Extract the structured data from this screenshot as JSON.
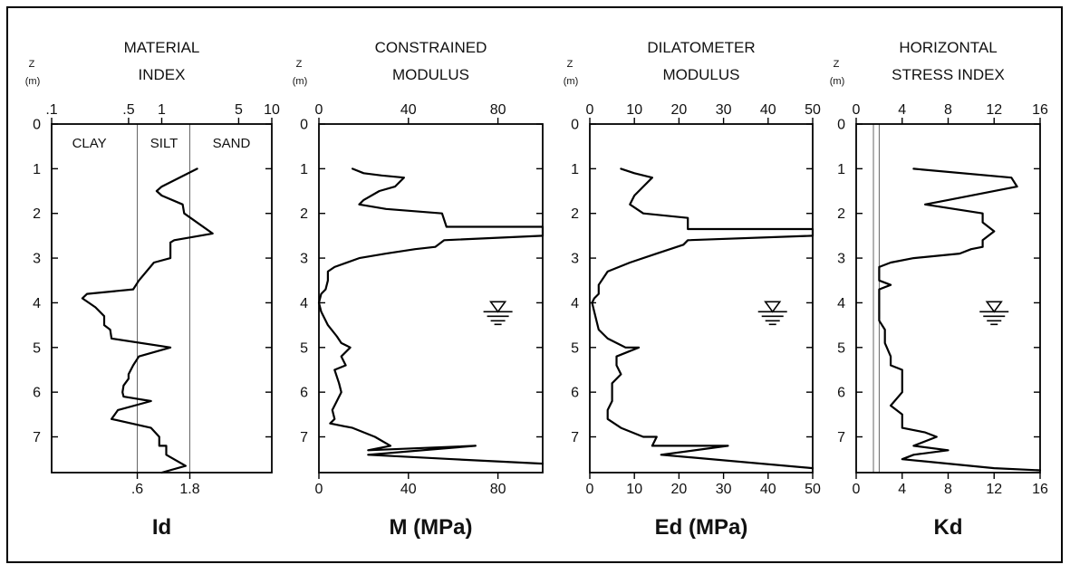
{
  "chart_data": [
    {
      "type": "line",
      "panel": "id",
      "title_lines": [
        "MATERIAL",
        "INDEX"
      ],
      "xlabel": "Id",
      "ylabel_lines": [
        "Z",
        "(m)"
      ],
      "x_scale": "log",
      "xlim": [
        0.1,
        10
      ],
      "ylim": [
        0,
        7.8
      ],
      "top_ticks": [
        {
          "value": 0.1,
          "label": ".1"
        },
        {
          "value": 0.5,
          "label": ".5"
        },
        {
          "value": 1,
          "label": "1"
        },
        {
          "value": 5,
          "label": "5"
        },
        {
          "value": 10,
          "label": "10"
        }
      ],
      "bottom_ticks": [
        {
          "value": 0.6,
          "label": ".6"
        },
        {
          "value": 1.8,
          "label": "1.8"
        }
      ],
      "y_ticks": [
        "0",
        "1",
        "2",
        "3",
        "4",
        "5",
        "6",
        "7"
      ],
      "reference_lines": [
        0.6,
        1.8
      ],
      "regions": [
        {
          "label": "CLAY",
          "x": 0.22
        },
        {
          "label": "SILT",
          "x": 1.05
        },
        {
          "label": "SAND",
          "x": 4.3
        }
      ],
      "series": [
        {
          "x": [
            2.1,
            1.0,
            0.9,
            1.0,
            1.55,
            1.6,
            2.9,
            1.3,
            1.2,
            1.2,
            0.85,
            0.62,
            0.55,
            0.21,
            0.19,
            0.25,
            0.3,
            0.3,
            0.34,
            0.35,
            1.2,
            0.62,
            0.55,
            0.5,
            0.5,
            0.45,
            0.44,
            0.45,
            0.8,
            0.4,
            0.35,
            0.8,
            0.95,
            0.95,
            1.1,
            1.1,
            1.65,
            1.0
          ],
          "y": [
            1.0,
            1.4,
            1.5,
            1.6,
            1.8,
            2.0,
            2.45,
            2.6,
            2.65,
            3.0,
            3.1,
            3.5,
            3.7,
            3.8,
            3.9,
            4.1,
            4.3,
            4.5,
            4.6,
            4.8,
            5.0,
            5.2,
            5.4,
            5.6,
            5.7,
            5.85,
            6.0,
            6.1,
            6.2,
            6.4,
            6.6,
            6.8,
            7.0,
            7.2,
            7.2,
            7.4,
            7.65,
            7.8
          ]
        }
      ]
    },
    {
      "type": "line",
      "panel": "m",
      "title_lines": [
        "CONSTRAINED",
        "MODULUS"
      ],
      "xlabel": "M (MPa)",
      "ylabel_lines": [
        "Z",
        "(m)"
      ],
      "xlim": [
        0,
        100
      ],
      "ylim": [
        0,
        7.8
      ],
      "top_ticks": [
        {
          "value": 0,
          "label": "0"
        },
        {
          "value": 40,
          "label": "40"
        },
        {
          "value": 80,
          "label": "80"
        }
      ],
      "bottom_ticks": [
        {
          "value": 0,
          "label": "0"
        },
        {
          "value": 40,
          "label": "40"
        },
        {
          "value": 80,
          "label": "80"
        }
      ],
      "y_ticks": [
        "0",
        "1",
        "2",
        "3",
        "4",
        "5",
        "6",
        "7"
      ],
      "water_table_depth": 4.2,
      "water_table_x": 80,
      "series": [
        {
          "x": [
            15,
            20,
            28,
            38,
            34,
            27,
            20,
            18,
            30,
            55,
            57,
            100,
            100,
            56,
            52,
            43,
            30,
            18,
            7,
            4,
            4,
            3,
            1,
            0,
            1,
            4,
            8,
            10,
            14,
            10,
            12,
            7,
            9,
            10,
            8,
            6,
            7,
            5,
            15,
            25,
            32,
            22,
            70,
            22,
            60,
            100
          ],
          "y": [
            1.0,
            1.1,
            1.15,
            1.2,
            1.4,
            1.5,
            1.7,
            1.8,
            1.9,
            2.0,
            2.3,
            2.3,
            2.5,
            2.6,
            2.75,
            2.8,
            2.9,
            3.0,
            3.2,
            3.3,
            3.5,
            3.7,
            3.8,
            4.0,
            4.2,
            4.5,
            4.75,
            4.9,
            5.0,
            5.2,
            5.4,
            5.5,
            5.8,
            6.0,
            6.2,
            6.4,
            6.6,
            6.7,
            6.8,
            7.0,
            7.2,
            7.3,
            7.2,
            7.4,
            7.5,
            7.6
          ]
        }
      ]
    },
    {
      "type": "line",
      "panel": "ed",
      "title_lines": [
        "DILATOMETER",
        "MODULUS"
      ],
      "xlabel": "Ed (MPa)",
      "ylabel_lines": [
        "Z",
        "(m)"
      ],
      "xlim": [
        0,
        50
      ],
      "ylim": [
        0,
        7.8
      ],
      "top_ticks": [
        {
          "value": 0,
          "label": "0"
        },
        {
          "value": 10,
          "label": "10"
        },
        {
          "value": 20,
          "label": "20"
        },
        {
          "value": 30,
          "label": "30"
        },
        {
          "value": 40,
          "label": "40"
        },
        {
          "value": 50,
          "label": "50"
        }
      ],
      "bottom_ticks": [
        {
          "value": 0,
          "label": "0"
        },
        {
          "value": 10,
          "label": "10"
        },
        {
          "value": 20,
          "label": "20"
        },
        {
          "value": 30,
          "label": "30"
        },
        {
          "value": 40,
          "label": "40"
        },
        {
          "value": 50,
          "label": "50"
        }
      ],
      "y_ticks": [
        "0",
        "1",
        "2",
        "3",
        "4",
        "5",
        "6",
        "7"
      ],
      "water_table_depth": 4.2,
      "water_table_x": 41,
      "series": [
        {
          "x": [
            7,
            10,
            14,
            12,
            10,
            9,
            12,
            22,
            22,
            50,
            50,
            22,
            21,
            15,
            9,
            4,
            2,
            2,
            1,
            0.5,
            1,
            2,
            4,
            8,
            11,
            6,
            6,
            7,
            5,
            5,
            5,
            4,
            4,
            7,
            12,
            15,
            14,
            31,
            16,
            50
          ],
          "y": [
            1.0,
            1.1,
            1.2,
            1.4,
            1.6,
            1.8,
            2.0,
            2.1,
            2.35,
            2.35,
            2.5,
            2.6,
            2.7,
            2.9,
            3.1,
            3.3,
            3.6,
            3.8,
            3.9,
            4.0,
            4.2,
            4.6,
            4.8,
            5.0,
            5.0,
            5.2,
            5.4,
            5.6,
            5.8,
            6.0,
            6.2,
            6.4,
            6.6,
            6.8,
            7.0,
            7.0,
            7.2,
            7.2,
            7.4,
            7.7
          ]
        }
      ]
    },
    {
      "type": "line",
      "panel": "kd",
      "title_lines": [
        "HORIZONTAL",
        "STRESS INDEX"
      ],
      "xlabel": "Kd",
      "ylabel_lines": [
        "Z",
        "(m)"
      ],
      "xlim": [
        0,
        16
      ],
      "ylim": [
        0,
        7.8
      ],
      "top_ticks": [
        {
          "value": 0,
          "label": "0"
        },
        {
          "value": 4,
          "label": "4"
        },
        {
          "value": 8,
          "label": "8"
        },
        {
          "value": 12,
          "label": "12"
        },
        {
          "value": 16,
          "label": "16"
        }
      ],
      "bottom_ticks": [
        {
          "value": 0,
          "label": "0"
        },
        {
          "value": 4,
          "label": "4"
        },
        {
          "value": 8,
          "label": "8"
        },
        {
          "value": 12,
          "label": "12"
        },
        {
          "value": 16,
          "label": "16"
        }
      ],
      "y_ticks": [
        "0",
        "1",
        "2",
        "3",
        "4",
        "5",
        "6",
        "7"
      ],
      "reference_lines": [
        1.5,
        2
      ],
      "water_table_depth": 4.2,
      "water_table_x": 12,
      "series": [
        {
          "x": [
            5,
            13.5,
            14,
            8,
            6,
            11,
            11,
            12,
            11,
            11,
            10,
            9,
            5,
            3,
            2,
            2,
            3,
            2,
            2,
            2,
            2.5,
            2.5,
            3,
            3,
            4,
            4,
            4,
            3,
            4,
            4,
            6,
            7,
            5,
            8,
            5,
            4,
            8,
            12,
            16
          ],
          "y": [
            1.0,
            1.2,
            1.4,
            1.7,
            1.8,
            2.0,
            2.2,
            2.4,
            2.6,
            2.75,
            2.8,
            2.9,
            3.0,
            3.1,
            3.2,
            3.5,
            3.6,
            3.7,
            4.0,
            4.4,
            4.6,
            4.9,
            5.2,
            5.4,
            5.5,
            5.8,
            6.0,
            6.3,
            6.5,
            6.8,
            6.9,
            7.0,
            7.2,
            7.3,
            7.4,
            7.5,
            7.6,
            7.7,
            7.75
          ]
        }
      ]
    }
  ]
}
